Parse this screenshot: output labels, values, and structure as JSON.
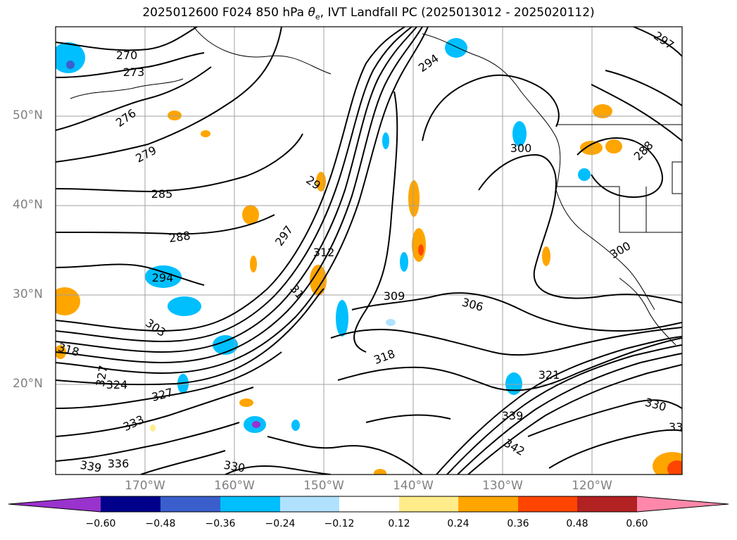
{
  "title": {
    "prefix": "2025012600 F024 850 hPa ",
    "theta": "θ",
    "sub": "e",
    "suffix": ", IVT Landfall PC (2025013012 - 2025020112)"
  },
  "map": {
    "lat_labels": [
      "50°N",
      "40°N",
      "30°N",
      "20°N"
    ],
    "lon_labels": [
      "170°W",
      "160°W",
      "150°W",
      "140°W",
      "130°W",
      "120°W"
    ]
  },
  "contour_labels": [
    "270",
    "273",
    "276",
    "279",
    "285",
    "288",
    "294",
    "29",
    "297",
    "312",
    "31",
    "309",
    "306",
    "303",
    "318",
    "324",
    "327",
    "333",
    "336",
    "339",
    "330",
    "321",
    "342",
    "33",
    "300",
    "294",
    "300",
    "288",
    "297",
    "318",
    "327",
    "339",
    "330"
  ],
  "colorbar": {
    "ticks": [
      "−0.60",
      "−0.48",
      "−0.36",
      "−0.24",
      "−0.12",
      "0.12",
      "0.24",
      "0.36",
      "0.48",
      "0.60"
    ],
    "colors": [
      "#9a32cd",
      "#00008b",
      "#3a5fcd",
      "#00bfff",
      "#b0e2ff",
      "#ffffff",
      "#ffec8b",
      "#ffa500",
      "#ff4500",
      "#b22222",
      "#ff88aa"
    ]
  }
}
